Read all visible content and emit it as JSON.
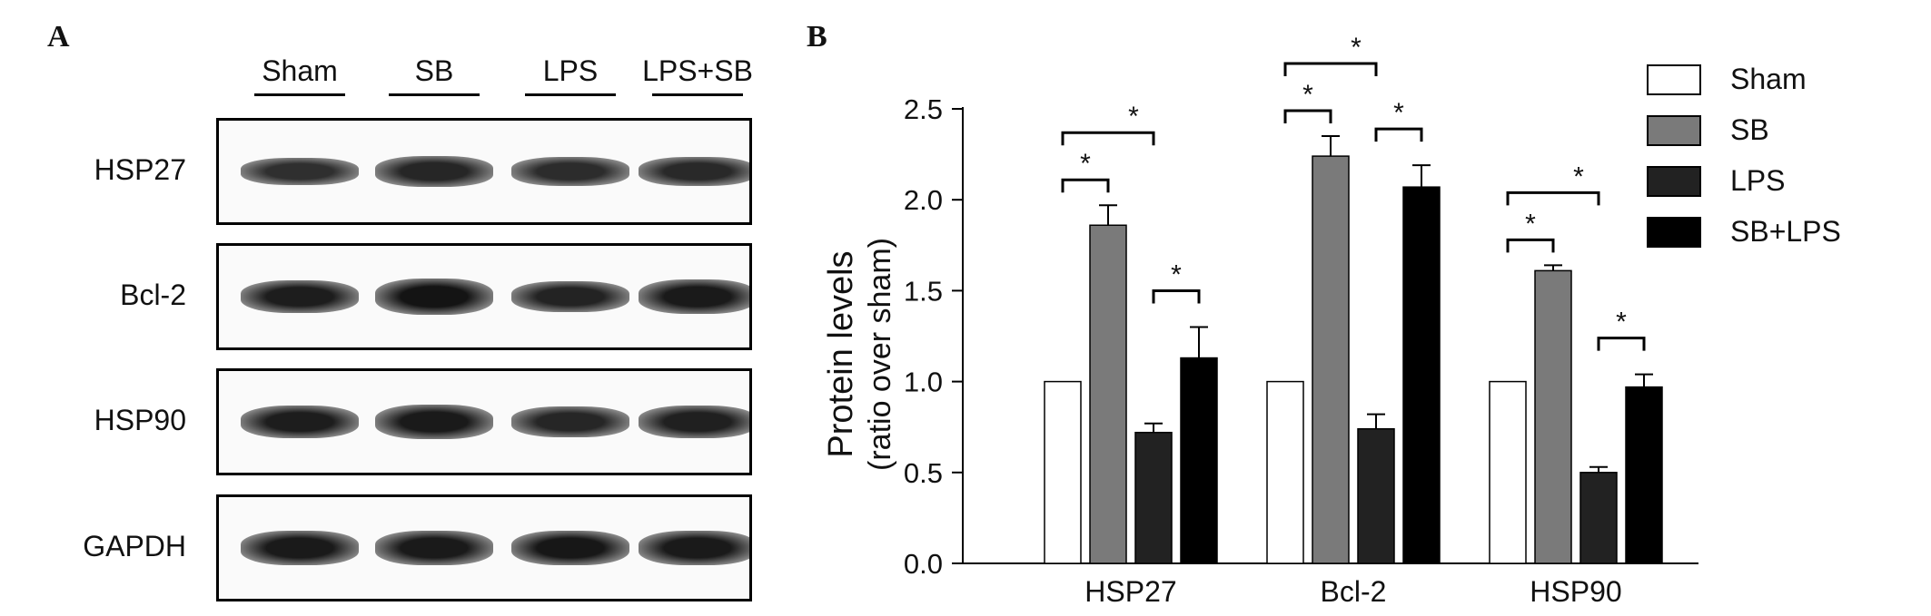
{
  "panel_a": {
    "label": "A",
    "lanes": [
      "Sham",
      "SB",
      "LPS",
      "LPS+SB"
    ],
    "rows": [
      {
        "name": "HSP27",
        "intensity": [
          0.55,
          0.7,
          0.6,
          0.65
        ]
      },
      {
        "name": "Bcl-2",
        "intensity": [
          0.85,
          1.0,
          0.75,
          0.9
        ]
      },
      {
        "name": "HSP90",
        "intensity": [
          0.85,
          0.9,
          0.7,
          0.8
        ]
      },
      {
        "name": "GAPDH",
        "intensity": [
          0.9,
          0.9,
          0.95,
          0.9
        ]
      }
    ]
  },
  "panel_b": {
    "label": "B"
  },
  "chart_data": {
    "type": "bar",
    "categories": [
      "HSP27",
      "Bcl-2",
      "HSP90"
    ],
    "series": [
      {
        "name": "Sham",
        "values": [
          1.0,
          1.0,
          1.0
        ],
        "errors": [
          0,
          0,
          0
        ],
        "color": "#ffffff"
      },
      {
        "name": "SB",
        "values": [
          1.86,
          2.24,
          1.61
        ],
        "errors": [
          0.11,
          0.11,
          0.03
        ],
        "color": "#7a7a7a"
      },
      {
        "name": "LPS",
        "values": [
          0.72,
          0.74,
          0.5
        ],
        "errors": [
          0.05,
          0.08,
          0.03
        ],
        "color": "#222222"
      },
      {
        "name": "SB+LPS",
        "values": [
          1.13,
          2.07,
          0.97
        ],
        "errors": [
          0.17,
          0.12,
          0.07
        ],
        "color": "#000000"
      }
    ],
    "ylabel_line1": "Protein levels",
    "ylabel_line2": "(ratio over sham)",
    "ylim": [
      0,
      2.5
    ],
    "yticks": [
      "0.0",
      "0.5",
      "1.0",
      "1.5",
      "2.0",
      "2.5"
    ],
    "significance_marker": "*",
    "significance_pairs": [
      {
        "category": 0,
        "from": 0,
        "to": 1
      },
      {
        "category": 0,
        "from": 0,
        "to": 2
      },
      {
        "category": 0,
        "from": 2,
        "to": 3
      },
      {
        "category": 1,
        "from": 0,
        "to": 1
      },
      {
        "category": 1,
        "from": 0,
        "to": 2
      },
      {
        "category": 1,
        "from": 2,
        "to": 3
      },
      {
        "category": 2,
        "from": 0,
        "to": 1
      },
      {
        "category": 2,
        "from": 0,
        "to": 2
      },
      {
        "category": 2,
        "from": 2,
        "to": 3
      }
    ],
    "legend_position": "top-right"
  }
}
